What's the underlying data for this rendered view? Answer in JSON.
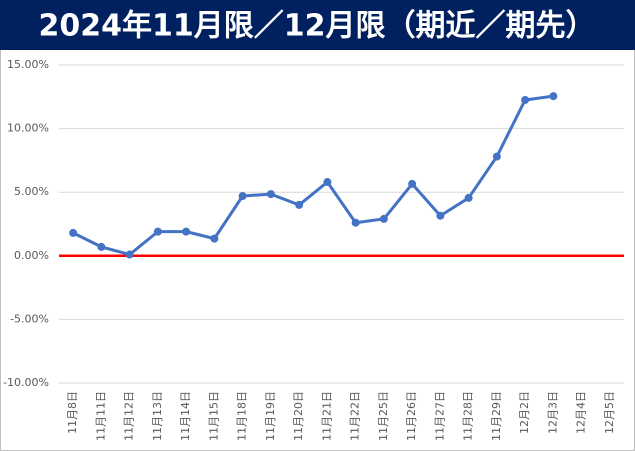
{
  "chart_data": {
    "type": "line",
    "title": "2024年11月限／12月限（期近／期先）",
    "categories": [
      "11月8日",
      "11月11日",
      "11月12日",
      "11月13日",
      "11月14日",
      "11月15日",
      "11月18日",
      "11月19日",
      "11月20日",
      "11月21日",
      "11月22日",
      "11月25日",
      "11月26日",
      "11月27日",
      "11月28日",
      "11月29日",
      "12月2日",
      "12月3日",
      "12月4日",
      "12月5日"
    ],
    "series": [
      {
        "name": "期近／期先",
        "color": "#4472c4",
        "values": [
          1.8,
          0.7,
          0.1,
          1.9,
          1.9,
          1.35,
          4.7,
          4.85,
          4.0,
          5.8,
          2.6,
          2.9,
          5.65,
          3.15,
          4.55,
          7.8,
          12.25,
          12.55,
          null,
          null
        ]
      }
    ],
    "ylim": [
      -10,
      15
    ],
    "yticks": [
      {
        "value": -10,
        "label": "-10.00%"
      },
      {
        "value": -5,
        "label": "-5.00%"
      },
      {
        "value": 0,
        "label": "0.00%"
      },
      {
        "value": 5,
        "label": "5.00%"
      },
      {
        "value": 10,
        "label": "10.00%"
      },
      {
        "value": 15,
        "label": "15.00%"
      }
    ],
    "grid": true,
    "zero_line_color": "#ff0000",
    "title_background": "#002060"
  }
}
